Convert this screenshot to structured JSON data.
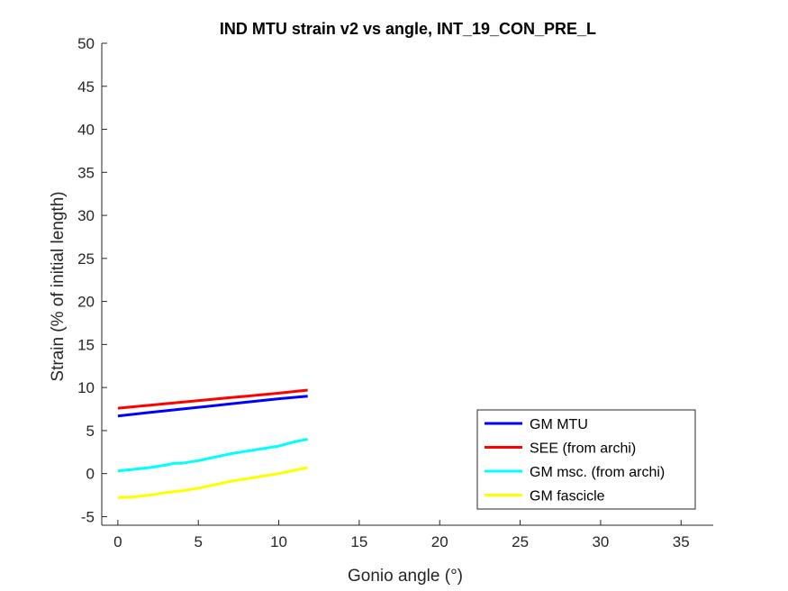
{
  "chart_data": {
    "type": "line",
    "title": "IND MTU strain v2 vs angle, INT_19_CON_PRE_L",
    "xlabel": "Gonio angle (°)",
    "ylabel": "Strain (% of initial length)",
    "xlim": [
      -1,
      37
    ],
    "ylim": [
      -6,
      50
    ],
    "xticks": [
      0,
      5,
      10,
      15,
      20,
      25,
      30,
      35
    ],
    "yticks": [
      -5,
      0,
      5,
      10,
      15,
      20,
      25,
      30,
      35,
      40,
      45,
      50
    ],
    "grid": false,
    "legend_position": "bottom-right",
    "series": [
      {
        "name": "GM MTU",
        "color": "#0000ff",
        "x": [
          0,
          2,
          4,
          6,
          8,
          10,
          11.8
        ],
        "y": [
          6.7,
          7.1,
          7.5,
          7.9,
          8.3,
          8.7,
          9.0
        ]
      },
      {
        "name": "SEE (from archi)",
        "color": "#ff0000",
        "x": [
          0,
          2,
          4,
          6,
          8,
          10,
          11.8
        ],
        "y": [
          7.6,
          7.95,
          8.3,
          8.65,
          9.0,
          9.35,
          9.7
        ]
      },
      {
        "name": "GM msc. (from archi)",
        "color": "#00ffff",
        "x": [
          0,
          1,
          2,
          3,
          3.5,
          4,
          5,
          6,
          7,
          8,
          9,
          10,
          11,
          11.8
        ],
        "y": [
          0.3,
          0.5,
          0.7,
          1.0,
          1.2,
          1.2,
          1.5,
          1.9,
          2.3,
          2.6,
          2.9,
          3.2,
          3.7,
          4.0
        ]
      },
      {
        "name": "GM fascicle",
        "color": "#ffff00",
        "x": [
          0,
          1,
          2,
          3,
          4,
          5,
          6,
          7,
          8,
          9,
          10,
          11,
          11.8
        ],
        "y": [
          -2.8,
          -2.7,
          -2.5,
          -2.2,
          -2.0,
          -1.7,
          -1.3,
          -0.9,
          -0.6,
          -0.3,
          0.0,
          0.4,
          0.7
        ]
      }
    ]
  }
}
